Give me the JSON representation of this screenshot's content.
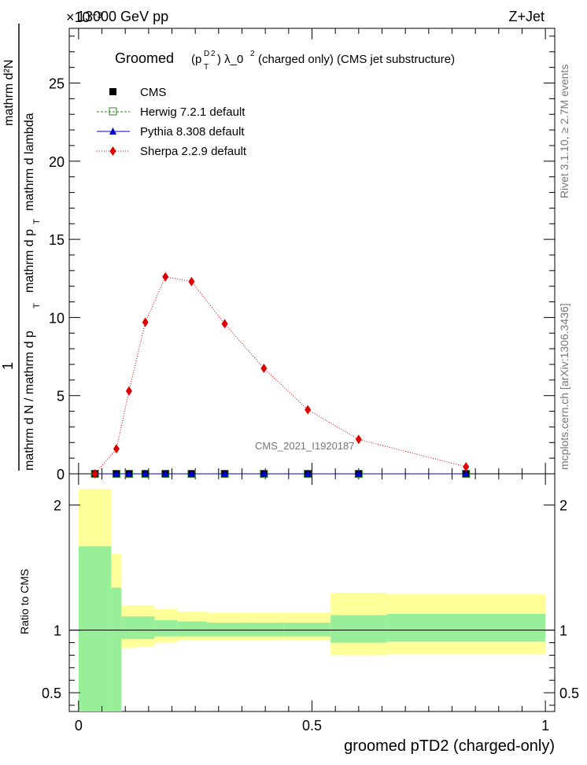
{
  "header": {
    "energy_label": "13000 GeV pp",
    "process_label": "Z+Jet",
    "exponent_label": "×10⁻³",
    "rivet_label": "Rivet 3.1.10, ≥ 2.7M events",
    "mcplots_label": "mcplots.cern.ch [arXiv:1306.3436]",
    "analysis_label": "CMS_2021_I1920187"
  },
  "chart_data": [
    {
      "type": "line",
      "title_main": "Groomed",
      "title_sub": "(p",
      "title_sup_D": "D",
      "title_sub_T": "T",
      "title_sup_2": "2",
      "title_rest": ")  λ_0",
      "title_rest_sup": "2",
      "title_tail": "  (charged only) (CMS jet substructure)",
      "ylabel_numerator": "1",
      "ylabel_den": "mathrm d N / mathrm d p  mathrm d p  mathrm d lambda",
      "ylabel_lines": [
        "mathrm d²N",
        "mathrm d p",
        "T",
        "mathrm d lambda",
        "mathrm d N / mathrm d p",
        "T"
      ],
      "ylim": [
        0,
        28.5
      ],
      "y_scale_note": "values ×10⁻³ of the printed axis",
      "yticks": [
        0,
        5,
        10,
        15,
        20,
        25
      ],
      "xlim": [
        -0.02,
        1.02
      ],
      "x": [
        0.035,
        0.081,
        0.108,
        0.143,
        0.186,
        0.242,
        0.313,
        0.397,
        0.491,
        0.6,
        0.83
      ],
      "series": [
        {
          "name": "CMS",
          "color": "#000000",
          "marker": "square",
          "values": [
            0,
            0,
            0,
            0,
            0,
            0,
            0,
            0,
            0,
            0,
            0
          ]
        },
        {
          "name": "Herwig 7.2.1 default",
          "color": "#2a8a1a",
          "marker": "open-square",
          "dash": "dashed",
          "values": [
            0,
            0,
            0,
            0,
            0,
            0,
            0,
            0,
            0,
            0,
            0
          ]
        },
        {
          "name": "Pythia 8.308 default",
          "color": "#0000cc",
          "marker": "triangle",
          "dash": "solid",
          "values": [
            0,
            0,
            0,
            0,
            0,
            0,
            0,
            0,
            0,
            0,
            0
          ]
        },
        {
          "name": "Sherpa 2.2.9 default",
          "color": "#dd0000",
          "marker": "diamond",
          "dash": "dotted",
          "values": [
            0.0,
            1.6,
            5.3,
            9.7,
            12.6,
            12.3,
            9.6,
            6.75,
            4.1,
            2.2,
            0.45
          ]
        }
      ],
      "legend_position": "top-left"
    },
    {
      "type": "area",
      "ylabel": "Ratio to CMS",
      "xlabel": "groomed pTD2 (charged-only)",
      "ylim": [
        0.35,
        2.25
      ],
      "yticks": [
        0.5,
        1,
        2
      ],
      "ytick_labels": [
        "0.5",
        "1",
        "2"
      ],
      "xticks": [
        0,
        0.5,
        1
      ],
      "xtick_labels": [
        "0",
        "0.5",
        "1"
      ],
      "reference_line": 1,
      "bins": [
        {
          "lo": 0.0,
          "hi": 0.07,
          "inner": [
            0.35,
            1.67
          ],
          "outer": [
            0.35,
            2.13
          ]
        },
        {
          "lo": 0.07,
          "hi": 0.092,
          "inner": [
            0.35,
            1.34
          ],
          "outer": [
            0.45,
            1.61
          ]
        },
        {
          "lo": 0.092,
          "hi": 0.125,
          "inner": [
            0.93,
            1.11
          ],
          "outer": [
            0.86,
            1.2
          ]
        },
        {
          "lo": 0.125,
          "hi": 0.163,
          "inner": [
            0.93,
            1.11
          ],
          "outer": [
            0.87,
            1.2
          ]
        },
        {
          "lo": 0.163,
          "hi": 0.212,
          "inner": [
            0.95,
            1.08
          ],
          "outer": [
            0.9,
            1.17
          ]
        },
        {
          "lo": 0.212,
          "hi": 0.275,
          "inner": [
            0.95,
            1.07
          ],
          "outer": [
            0.92,
            1.15
          ]
        },
        {
          "lo": 0.275,
          "hi": 0.355,
          "inner": [
            0.95,
            1.06
          ],
          "outer": [
            0.92,
            1.14
          ]
        },
        {
          "lo": 0.355,
          "hi": 0.44,
          "inner": [
            0.95,
            1.06
          ],
          "outer": [
            0.92,
            1.14
          ]
        },
        {
          "lo": 0.44,
          "hi": 0.54,
          "inner": [
            0.95,
            1.06
          ],
          "outer": [
            0.92,
            1.14
          ]
        },
        {
          "lo": 0.54,
          "hi": 0.66,
          "inner": [
            0.9,
            1.12
          ],
          "outer": [
            0.8,
            1.3
          ]
        },
        {
          "lo": 0.66,
          "hi": 1.0,
          "inner": [
            0.91,
            1.13
          ],
          "outer": [
            0.81,
            1.29
          ]
        }
      ],
      "band_colors": {
        "inner": "#99ee99",
        "outer": "#ffff99"
      }
    }
  ]
}
